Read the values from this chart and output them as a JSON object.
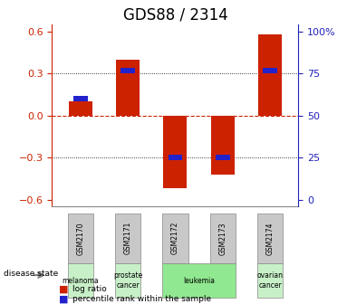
{
  "title": "GDS88 / 2314",
  "samples": [
    "GSM2170",
    "GSM2171",
    "GSM2172",
    "GSM2173",
    "GSM2174"
  ],
  "log_ratio": [
    0.1,
    0.4,
    -0.52,
    -0.42,
    0.58
  ],
  "percentile_rank": [
    0.12,
    0.32,
    -0.3,
    -0.3,
    0.32
  ],
  "disease_states": [
    "melanoma",
    "prostate cancer",
    "leukemia",
    "leukemia",
    "ovarian cancer"
  ],
  "disease_colors": {
    "melanoma": "#c8f0c8",
    "prostate cancer": "#c8f0c8",
    "leukemia": "#90e890",
    "ovarian cancer": "#c8f0c8"
  },
  "bar_color_red": "#cc2200",
  "bar_color_blue": "#2222cc",
  "ylim": [
    -0.65,
    0.65
  ],
  "yticks_left": [
    -0.6,
    -0.3,
    0.0,
    0.3,
    0.6
  ],
  "yticks_right": [
    0,
    25,
    50,
    75,
    100
  ],
  "bar_width": 0.5,
  "background_color": "#ffffff",
  "left_axis_color": "#cc2200",
  "right_axis_color": "#2222bb",
  "title_fontsize": 12,
  "tick_fontsize": 8,
  "label_fontsize": 7,
  "sample_bg_color": "#c8c8c8"
}
